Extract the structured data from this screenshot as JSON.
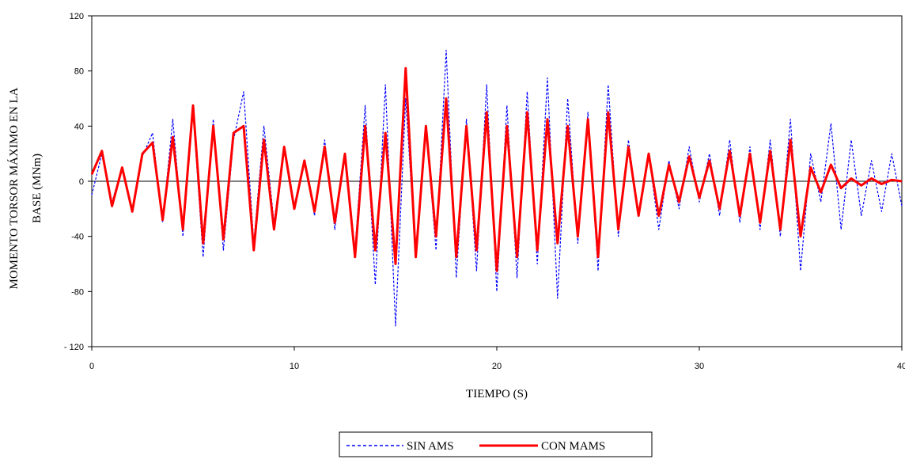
{
  "chart_data": {
    "type": "line",
    "title": "",
    "xlabel": "TIEMPO (S)",
    "ylabel_lines": [
      "MOMENTO TORSOR MÁXIMO EN LA",
      "BASE (MNm)"
    ],
    "xlim": [
      0,
      40
    ],
    "ylim": [
      -120,
      120
    ],
    "xticks": [
      0,
      10,
      20,
      30,
      40
    ],
    "yticks": [
      120,
      80,
      40,
      0,
      -40,
      -80,
      -120
    ],
    "ytick_labels": [
      "120",
      "80",
      "40",
      "0",
      "-40",
      "-80",
      "- 120"
    ],
    "grid": false,
    "legend_position": "bottom-center",
    "series": [
      {
        "name": "SIN AMS",
        "color": "#0000ff",
        "style": "dashed",
        "x": [
          0,
          0.5,
          1,
          1.5,
          2,
          2.5,
          3,
          3.5,
          4,
          4.5,
          5,
          5.5,
          6,
          6.5,
          7,
          7.5,
          8,
          8.5,
          9,
          9.5,
          10,
          10.5,
          11,
          11.5,
          12,
          12.5,
          13,
          13.5,
          14,
          14.5,
          15,
          15.5,
          16,
          16.5,
          17,
          17.5,
          18,
          18.5,
          19,
          19.5,
          20,
          20.5,
          21,
          21.5,
          22,
          22.5,
          23,
          23.5,
          24,
          24.5,
          25,
          25.5,
          26,
          26.5,
          27,
          27.5,
          28,
          28.5,
          29,
          29.5,
          30,
          30.5,
          31,
          31.5,
          32,
          32.5,
          33,
          33.5,
          34,
          34.5,
          35,
          35.5,
          36,
          36.5,
          37,
          37.5,
          38,
          38.5,
          39,
          39.5,
          40
        ],
        "values": [
          -10,
          20,
          -15,
          10,
          -20,
          18,
          35,
          -30,
          45,
          -40,
          50,
          -55,
          45,
          -50,
          30,
          65,
          -45,
          40,
          -30,
          25,
          -20,
          15,
          -25,
          30,
          -35,
          20,
          -50,
          55,
          -75,
          70,
          -105,
          60,
          -55,
          40,
          -50,
          95,
          -70,
          45,
          -65,
          70,
          -80,
          55,
          -70,
          65,
          -60,
          75,
          -85,
          60,
          -45,
          50,
          -65,
          70,
          -40,
          30,
          -25,
          20,
          -35,
          15,
          -20,
          25,
          -15,
          20,
          -25,
          30,
          -30,
          25,
          -35,
          30,
          -40,
          45,
          -65,
          20,
          -15,
          42,
          -35,
          30,
          -25,
          15,
          -22,
          20,
          -18
        ]
      },
      {
        "name": "CON MAMS",
        "color": "#ff0000",
        "style": "solid",
        "x": [
          0,
          0.5,
          1,
          1.5,
          2,
          2.5,
          3,
          3.5,
          4,
          4.5,
          5,
          5.5,
          6,
          6.5,
          7,
          7.5,
          8,
          8.5,
          9,
          9.5,
          10,
          10.5,
          11,
          11.5,
          12,
          12.5,
          13,
          13.5,
          14,
          14.5,
          15,
          15.5,
          16,
          16.5,
          17,
          17.5,
          18,
          18.5,
          19,
          19.5,
          20,
          20.5,
          21,
          21.5,
          22,
          22.5,
          23,
          23.5,
          24,
          24.5,
          25,
          25.5,
          26,
          26.5,
          27,
          27.5,
          28,
          28.5,
          29,
          29.5,
          30,
          30.5,
          31,
          31.5,
          32,
          32.5,
          33,
          33.5,
          34,
          34.5,
          35,
          35.5,
          36,
          36.5,
          37,
          37.5,
          38,
          38.5,
          39,
          39.5,
          40
        ],
        "values": [
          5,
          22,
          -18,
          10,
          -22,
          20,
          28,
          -28,
          32,
          -35,
          55,
          -45,
          40,
          -42,
          35,
          40,
          -50,
          30,
          -35,
          25,
          -20,
          15,
          -22,
          25,
          -30,
          20,
          -55,
          40,
          -50,
          35,
          -60,
          82,
          -55,
          40,
          -40,
          60,
          -55,
          40,
          -50,
          50,
          -65,
          40,
          -55,
          50,
          -50,
          45,
          -45,
          40,
          -40,
          45,
          -55,
          50,
          -35,
          25,
          -25,
          20,
          -25,
          12,
          -15,
          18,
          -12,
          15,
          -20,
          22,
          -25,
          20,
          -30,
          22,
          -35,
          30,
          -40,
          10,
          -8,
          12,
          -5,
          2,
          -3,
          2,
          -2,
          1,
          0
        ]
      }
    ]
  }
}
